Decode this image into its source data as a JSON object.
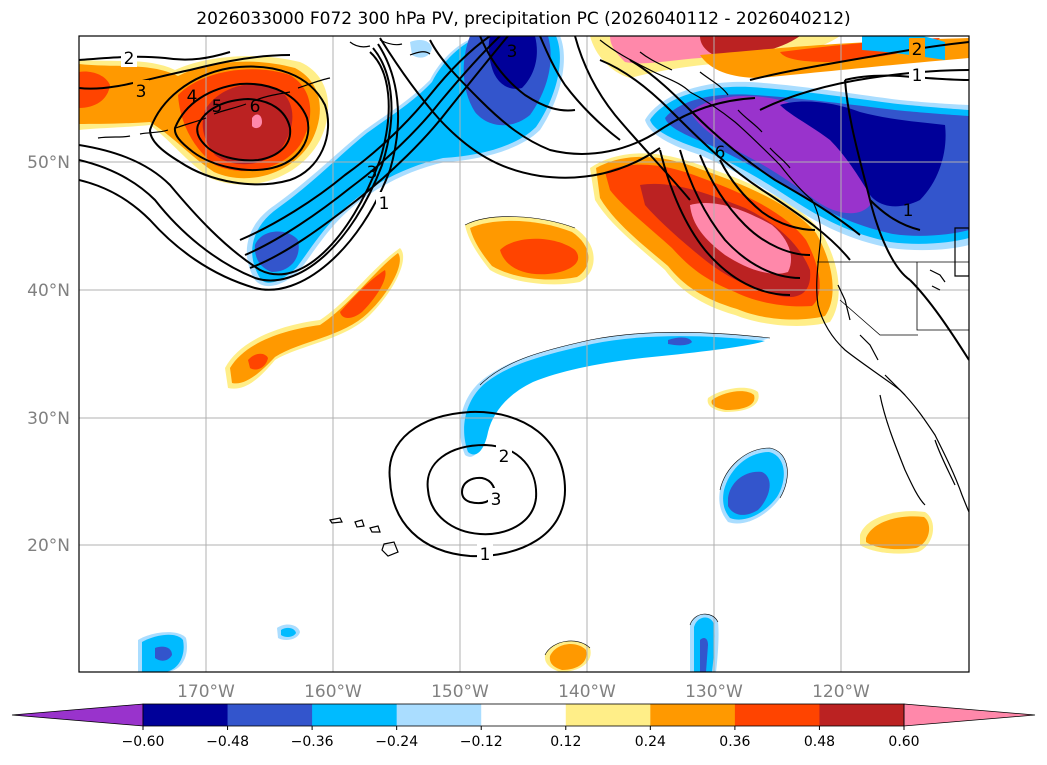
{
  "title": "2026033000 F072 300 hPa PV, precipitation PC (2026040112 - 2026040212)",
  "map": {
    "lat_labels": [
      "50°N",
      "40°N",
      "30°N",
      "20°N"
    ],
    "lon_labels": [
      "170°W",
      "160°W",
      "150°W",
      "140°W",
      "130°W",
      "120°W"
    ],
    "label_color": "#808080",
    "contour_labels": [
      {
        "text": "2",
        "note": "north-west"
      },
      {
        "text": "3",
        "note": "north-west"
      },
      {
        "text": "4",
        "note": "north-west ridge"
      },
      {
        "text": "5",
        "note": "north-west ridge"
      },
      {
        "text": "6",
        "note": "north-west ridge"
      },
      {
        "text": "3",
        "note": "central trough"
      },
      {
        "text": "1",
        "note": "central trough"
      },
      {
        "text": "3",
        "note": "gulf of alaska"
      },
      {
        "text": "2",
        "note": "north-east"
      },
      {
        "text": "1",
        "note": "north-east"
      },
      {
        "text": "6",
        "note": "canada"
      },
      {
        "text": "1",
        "note": "canada"
      },
      {
        "text": "2",
        "note": "subtropical low"
      },
      {
        "text": "3",
        "note": "subtropical low"
      },
      {
        "text": "1",
        "note": "subtropical low"
      }
    ]
  },
  "colorbar": {
    "colors": [
      "#9933cc",
      "#000099",
      "#3355cc",
      "#00bbff",
      "#aaddff",
      "#ffffff",
      "#ffee88",
      "#ff9900",
      "#ff4400",
      "#bb2222",
      "#ff88aa"
    ],
    "tick_labels": [
      "−0.60",
      "−0.48",
      "−0.36",
      "−0.24",
      "−0.12",
      "0.12",
      "0.24",
      "0.36",
      "0.48",
      "0.60"
    ]
  }
}
